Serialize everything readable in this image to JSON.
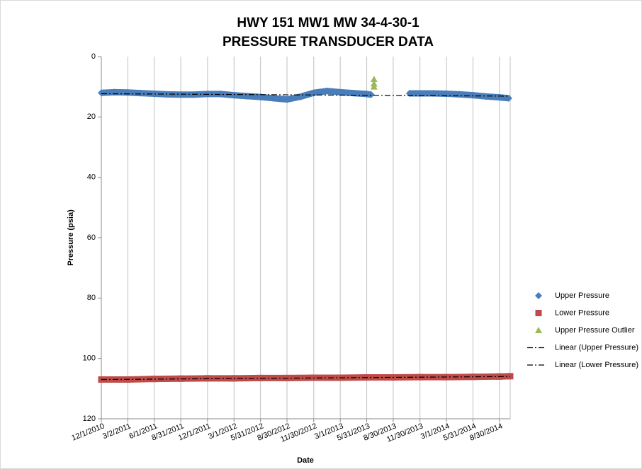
{
  "chart_data": {
    "type": "scatter",
    "title": [
      "HWY 151 MW1    MW 34-4-30-1",
      "PRESSURE TRANSDUCER DATA"
    ],
    "x_label": "Date",
    "y_label": "Pressure (psia)",
    "xlim": [
      "12/1/2010",
      "10/6/2014"
    ],
    "xticks": [
      "12/1/2010",
      "3/2/2011",
      "6/1/2011",
      "8/31/2011",
      "12/1/2011",
      "3/1/2012",
      "5/31/2012",
      "8/30/2012",
      "11/30/2012",
      "3/1/2013",
      "5/31/2013",
      "8/30/2013",
      "11/30/2013",
      "3/1/2014",
      "5/31/2014",
      "8/30/2014"
    ],
    "ylim": [
      0,
      120
    ],
    "yticks": [
      0,
      20,
      40,
      60,
      80,
      100,
      120
    ],
    "y_inverted": true,
    "grid": "x",
    "legend": "right",
    "series": [
      {
        "name": "Upper Pressure",
        "color": "#4a7ebb",
        "marker": "diamond",
        "x": [
          "12/1/2010",
          "1/15/2011",
          "3/2/2011",
          "4/15/2011",
          "6/1/2011",
          "7/15/2011",
          "8/31/2011",
          "10/15/2011",
          "12/1/2011",
          "1/15/2012",
          "3/1/2012",
          "4/15/2012",
          "5/31/2012",
          "7/15/2012",
          "8/30/2012",
          "10/15/2012",
          "11/30/2012",
          "1/15/2013",
          "3/1/2013",
          "4/15/2013",
          "5/31/2013",
          "6/15/2013",
          "8/30/2013",
          "10/25/2013",
          "12/1/2013",
          "1/15/2014",
          "3/1/2014",
          "4/15/2014",
          "5/31/2014",
          "7/15/2014",
          "8/30/2014",
          "10/1/2014"
        ],
        "values": [
          12.0,
          11.8,
          11.9,
          12.1,
          12.3,
          12.5,
          12.6,
          12.6,
          12.4,
          12.4,
          12.8,
          13.1,
          13.4,
          13.8,
          14.2,
          13.3,
          12.0,
          11.4,
          11.8,
          12.1,
          12.4,
          12.6,
          null,
          12.2,
          12.2,
          12.2,
          12.3,
          12.5,
          12.8,
          13.2,
          13.5,
          13.8
        ]
      },
      {
        "name": "Lower Pressure",
        "color": "#be4b48",
        "marker": "square",
        "x": [
          "12/1/2010",
          "3/2/2011",
          "6/1/2011",
          "8/31/2011",
          "12/1/2011",
          "3/1/2012",
          "5/31/2012",
          "8/30/2012",
          "11/30/2012",
          "3/1/2013",
          "5/31/2013",
          "8/30/2013",
          "11/30/2013",
          "3/1/2014",
          "5/31/2014",
          "8/30/2014",
          "10/6/2014"
        ],
        "values": [
          107.0,
          107.0,
          106.8,
          106.7,
          106.6,
          106.6,
          106.5,
          106.5,
          106.4,
          106.4,
          106.3,
          106.3,
          106.2,
          106.2,
          106.1,
          106.0,
          105.9
        ]
      },
      {
        "name": "Upper Pressure Outlier",
        "color": "#9bbb59",
        "marker": "triangle",
        "x": [
          "6/25/2013",
          "6/25/2013",
          "6/25/2013"
        ],
        "values": [
          7.5,
          9.0,
          10.0
        ]
      },
      {
        "name": "Linear (Upper Pressure)",
        "color": "#000000",
        "marker": "trend",
        "x": [
          "12/1/2010",
          "10/1/2014"
        ],
        "values": [
          12.3,
          13.1
        ]
      },
      {
        "name": "Linear (Lower Pressure)",
        "color": "#000000",
        "marker": "trend",
        "x": [
          "12/1/2010",
          "10/6/2014"
        ],
        "values": [
          107.0,
          106.0
        ]
      }
    ]
  }
}
